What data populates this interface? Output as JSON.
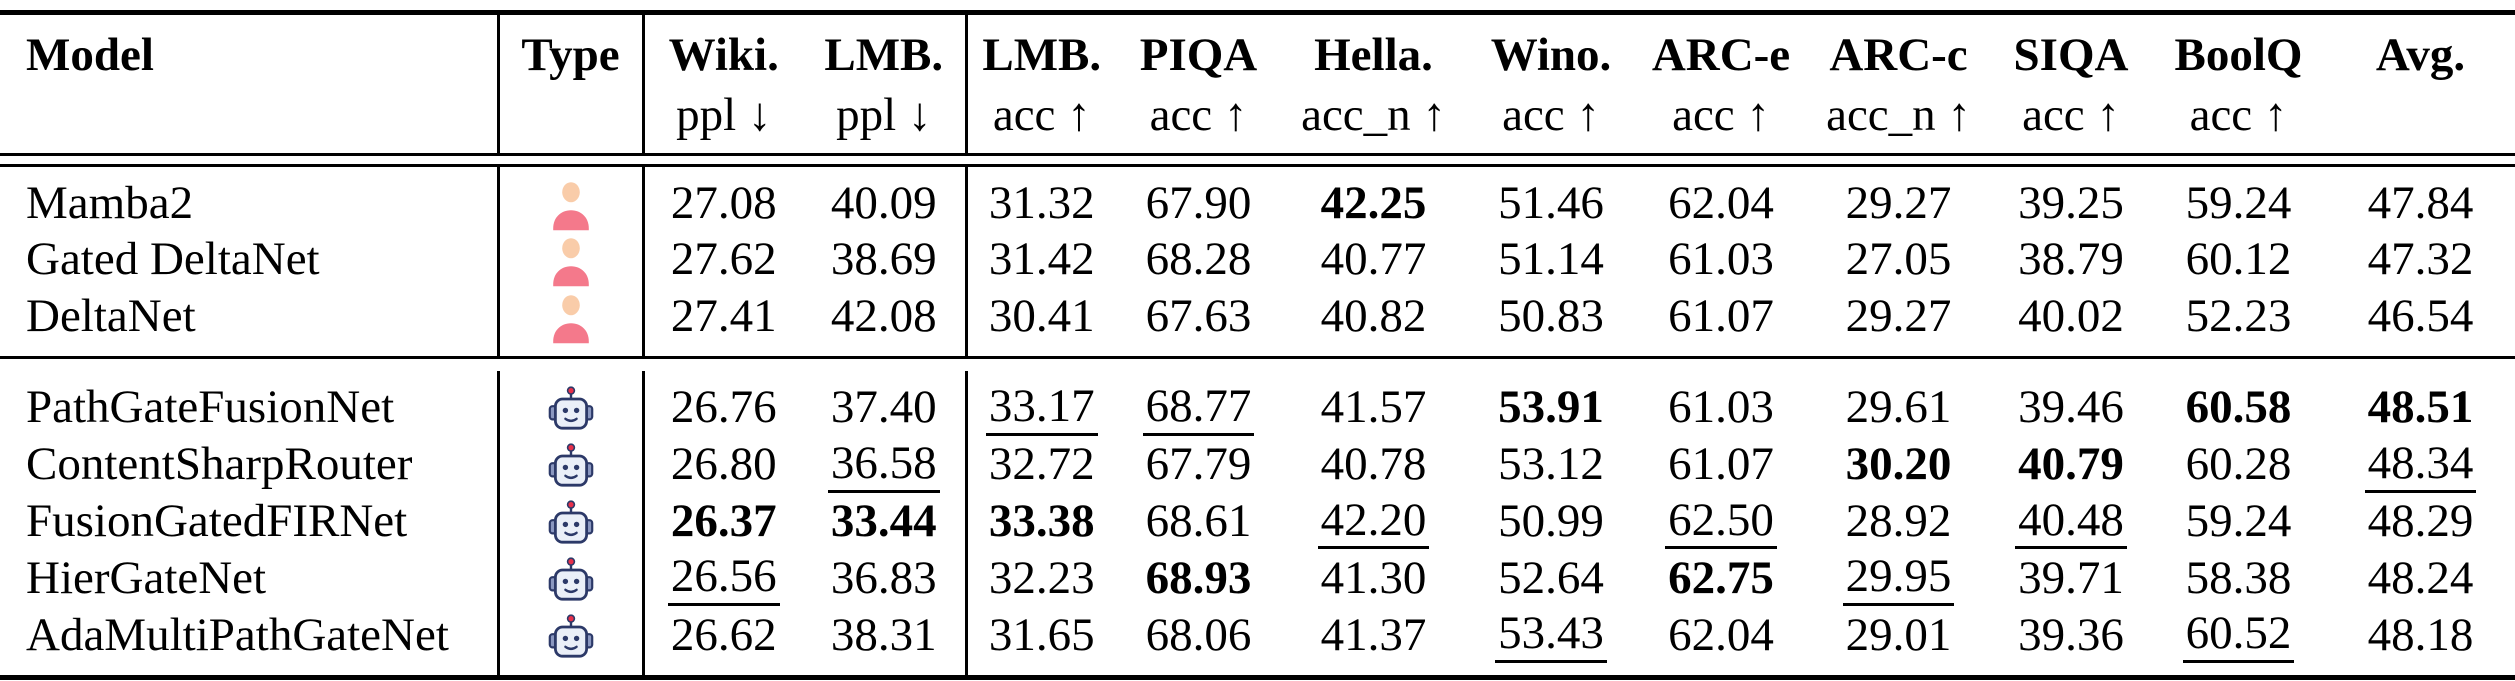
{
  "figure": {
    "kind": "benchmark-results-table",
    "columns": [
      {
        "id": "model",
        "label": "Model",
        "sub": ""
      },
      {
        "id": "type",
        "label": "Type",
        "sub": ""
      },
      {
        "id": "wiki-ppl",
        "label": "Wiki.",
        "sub": "ppl ↓"
      },
      {
        "id": "lmb-ppl",
        "label": "LMB.",
        "sub": "ppl ↓"
      },
      {
        "id": "lmb-acc",
        "label": "LMB.",
        "sub": "acc ↑"
      },
      {
        "id": "piqa",
        "label": "PIQA",
        "sub": "acc ↑"
      },
      {
        "id": "hella",
        "label": "Hella.",
        "sub": "acc_n ↑"
      },
      {
        "id": "wino",
        "label": "Wino.",
        "sub": "acc ↑"
      },
      {
        "id": "arc-e",
        "label": "ARC-e",
        "sub": "acc ↑"
      },
      {
        "id": "arc-c",
        "label": "ARC-c",
        "sub": "acc_n ↑"
      },
      {
        "id": "siqa",
        "label": "SIQA",
        "sub": "acc ↑"
      },
      {
        "id": "boolq",
        "label": "BoolQ",
        "sub": "acc ↑"
      },
      {
        "id": "avg",
        "label": "Avg.",
        "sub": ""
      }
    ],
    "row_groups": [
      {
        "rows": [
          {
            "model": "Mamba2",
            "type": "person",
            "values": [
              {
                "v": "27.08"
              },
              {
                "v": "40.09"
              },
              {
                "v": "31.32"
              },
              {
                "v": "67.90"
              },
              {
                "v": "42.25",
                "style": "bold"
              },
              {
                "v": "51.46"
              },
              {
                "v": "62.04"
              },
              {
                "v": "29.27"
              },
              {
                "v": "39.25"
              },
              {
                "v": "59.24"
              },
              {
                "v": "47.84"
              }
            ]
          },
          {
            "model": "Gated DeltaNet",
            "type": "person",
            "values": [
              {
                "v": "27.62"
              },
              {
                "v": "38.69"
              },
              {
                "v": "31.42"
              },
              {
                "v": "68.28"
              },
              {
                "v": "40.77"
              },
              {
                "v": "51.14"
              },
              {
                "v": "61.03"
              },
              {
                "v": "27.05"
              },
              {
                "v": "38.79"
              },
              {
                "v": "60.12"
              },
              {
                "v": "47.32"
              }
            ]
          },
          {
            "model": "DeltaNet",
            "type": "person",
            "values": [
              {
                "v": "27.41"
              },
              {
                "v": "42.08"
              },
              {
                "v": "30.41"
              },
              {
                "v": "67.63"
              },
              {
                "v": "40.82"
              },
              {
                "v": "50.83"
              },
              {
                "v": "61.07"
              },
              {
                "v": "29.27"
              },
              {
                "v": "40.02"
              },
              {
                "v": "52.23"
              },
              {
                "v": "46.54"
              }
            ]
          }
        ]
      },
      {
        "rows": [
          {
            "model": "PathGateFusionNet",
            "type": "robot",
            "values": [
              {
                "v": "26.76"
              },
              {
                "v": "37.40"
              },
              {
                "v": "33.17",
                "style": "underline"
              },
              {
                "v": "68.77",
                "style": "underline"
              },
              {
                "v": "41.57"
              },
              {
                "v": "53.91",
                "style": "bold"
              },
              {
                "v": "61.03"
              },
              {
                "v": "29.61"
              },
              {
                "v": "39.46"
              },
              {
                "v": "60.58",
                "style": "bold"
              },
              {
                "v": "48.51",
                "style": "bold"
              }
            ]
          },
          {
            "model": "ContentSharpRouter",
            "type": "robot",
            "values": [
              {
                "v": "26.80"
              },
              {
                "v": "36.58",
                "style": "underline"
              },
              {
                "v": "32.72"
              },
              {
                "v": "67.79"
              },
              {
                "v": "40.78"
              },
              {
                "v": "53.12"
              },
              {
                "v": "61.07"
              },
              {
                "v": "30.20",
                "style": "bold"
              },
              {
                "v": "40.79",
                "style": "bold"
              },
              {
                "v": "60.28"
              },
              {
                "v": "48.34",
                "style": "underline"
              }
            ]
          },
          {
            "model": "FusionGatedFIRNet",
            "type": "robot",
            "values": [
              {
                "v": "26.37",
                "style": "bold"
              },
              {
                "v": "33.44",
                "style": "bold"
              },
              {
                "v": "33.38",
                "style": "bold"
              },
              {
                "v": "68.61"
              },
              {
                "v": "42.20",
                "style": "underline"
              },
              {
                "v": "50.99"
              },
              {
                "v": "62.50",
                "style": "underline"
              },
              {
                "v": "28.92"
              },
              {
                "v": "40.48",
                "style": "underline"
              },
              {
                "v": "59.24"
              },
              {
                "v": "48.29"
              }
            ]
          },
          {
            "model": "HierGateNet",
            "type": "robot",
            "values": [
              {
                "v": "26.56",
                "style": "underline"
              },
              {
                "v": "36.83"
              },
              {
                "v": "32.23"
              },
              {
                "v": "68.93",
                "style": "bold"
              },
              {
                "v": "41.30"
              },
              {
                "v": "52.64"
              },
              {
                "v": "62.75",
                "style": "bold"
              },
              {
                "v": "29.95",
                "style": "underline"
              },
              {
                "v": "39.71"
              },
              {
                "v": "58.38"
              },
              {
                "v": "48.24"
              }
            ]
          },
          {
            "model": "AdaMultiPathGateNet",
            "type": "robot",
            "values": [
              {
                "v": "26.62"
              },
              {
                "v": "38.31"
              },
              {
                "v": "31.65"
              },
              {
                "v": "68.06"
              },
              {
                "v": "41.37"
              },
              {
                "v": "53.43",
                "style": "underline"
              },
              {
                "v": "62.04"
              },
              {
                "v": "29.01"
              },
              {
                "v": "39.36"
              },
              {
                "v": "60.52",
                "style": "underline"
              },
              {
                "v": "48.18"
              }
            ]
          }
        ]
      }
    ]
  },
  "icons": {
    "person": "person-icon",
    "robot": "robot-icon"
  },
  "colors": {
    "background": "#FFFFFF",
    "text": "#000000",
    "rule": "#000000",
    "person_head": "#F9CCA9",
    "person_body": "#F4798B",
    "robot_face": "#EAEFF8",
    "robot_outline": "#2C3968",
    "robot_ear": "#8A97C0",
    "robot_antenna_tip": "#E8304A"
  }
}
